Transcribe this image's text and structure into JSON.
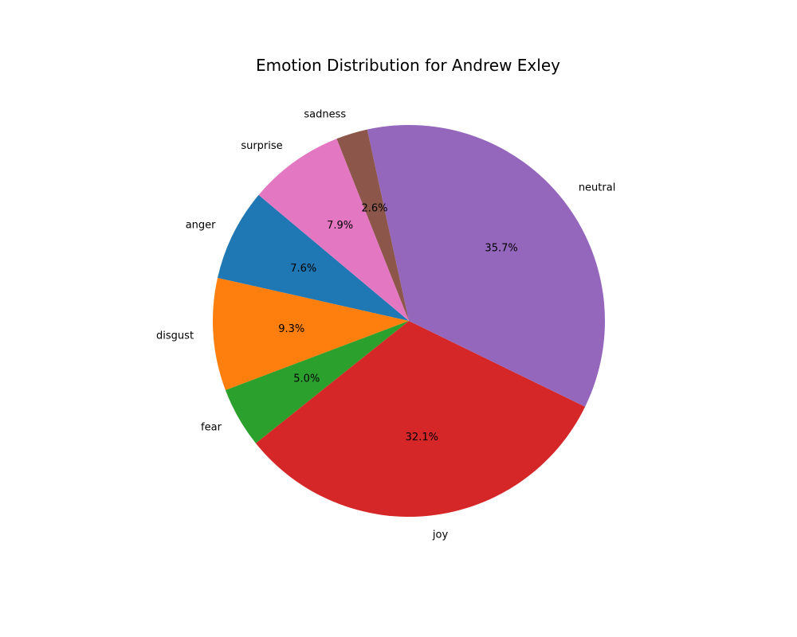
{
  "chart_data": {
    "type": "pie",
    "title": "Emotion Distribution for Andrew Exley",
    "slices": [
      {
        "label": "anger",
        "value": 7.6,
        "pct_label": "7.6%",
        "color": "#1f77b4"
      },
      {
        "label": "disgust",
        "value": 9.3,
        "pct_label": "9.3%",
        "color": "#ff7f0e"
      },
      {
        "label": "fear",
        "value": 5.0,
        "pct_label": "5.0%",
        "color": "#2ca02c"
      },
      {
        "label": "joy",
        "value": 32.1,
        "pct_label": "32.1%",
        "color": "#d62728"
      },
      {
        "label": "neutral",
        "value": 35.7,
        "pct_label": "35.7%",
        "color": "#9467bd"
      },
      {
        "label": "sadness",
        "value": 2.6,
        "pct_label": "2.6%",
        "color": "#8c564b"
      },
      {
        "label": "surprise",
        "value": 7.9,
        "pct_label": "7.9%",
        "color": "#e377c2"
      }
    ],
    "start_angle_deg": 140,
    "direction": "counterclockwise"
  }
}
